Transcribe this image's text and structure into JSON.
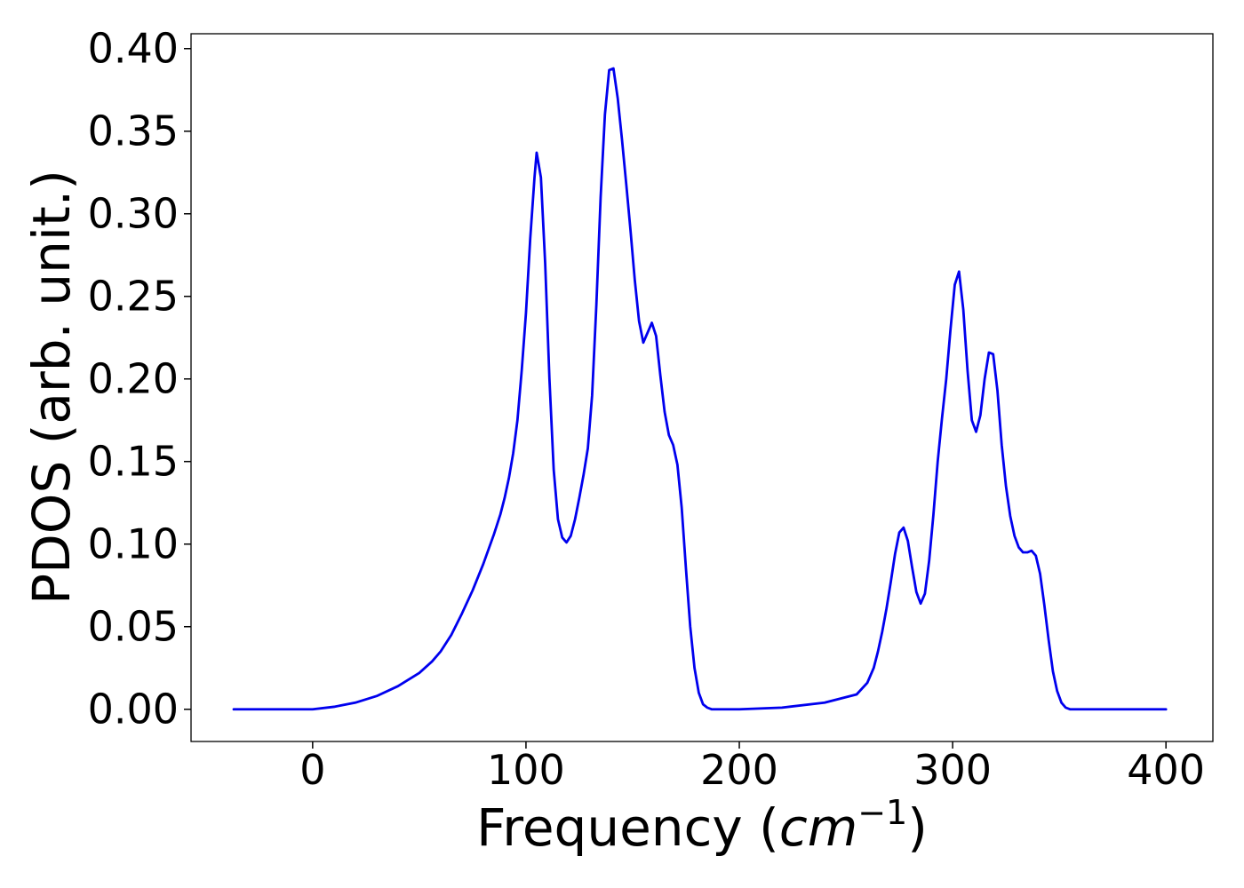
{
  "chart_data": {
    "type": "line",
    "xlabel_main": "Frequency (",
    "xlabel_math_base": "cm",
    "xlabel_math_sup": "−1",
    "xlabel_close": ")",
    "ylabel": "PDOS (arb. unit.)",
    "xlim": [
      -57,
      422
    ],
    "ylim": [
      -0.0195,
      0.409
    ],
    "xticks": [
      0,
      100,
      200,
      300,
      400
    ],
    "xtick_labels": [
      "0",
      "100",
      "200",
      "300",
      "400"
    ],
    "yticks": [
      0.0,
      0.05,
      0.1,
      0.15,
      0.2,
      0.25,
      0.3,
      0.35,
      0.4
    ],
    "ytick_labels": [
      "0.00",
      "0.05",
      "0.10",
      "0.15",
      "0.20",
      "0.25",
      "0.30",
      "0.35",
      "0.40"
    ],
    "grid": false,
    "series": [
      {
        "color": "#0000ee",
        "x": [
          -37,
          0,
          10,
          20,
          30,
          40,
          50,
          56,
          60,
          65,
          70,
          75,
          80,
          85,
          88,
          90,
          92,
          94,
          96,
          98,
          100,
          102,
          104,
          105,
          107,
          109,
          111,
          113,
          115,
          117,
          119,
          121,
          123,
          125,
          127,
          129,
          131,
          133,
          135,
          137,
          139,
          141,
          143,
          145,
          147,
          149,
          151,
          153,
          155,
          157,
          159,
          161,
          163,
          165,
          167,
          169,
          171,
          173,
          175,
          177,
          179,
          181,
          183,
          185,
          187,
          189,
          191,
          193,
          195,
          200,
          220,
          240,
          255,
          260,
          263,
          265,
          267,
          269,
          271,
          273,
          275,
          277,
          279,
          281,
          283,
          285,
          287,
          289,
          291,
          293,
          295,
          297,
          299,
          301,
          303,
          305,
          307,
          309,
          311,
          313,
          315,
          317,
          319,
          321,
          323,
          325,
          327,
          329,
          331,
          333,
          335,
          337,
          339,
          341,
          343,
          345,
          347,
          349,
          351,
          353,
          355,
          357,
          359,
          361,
          363,
          365,
          367,
          369,
          371,
          373,
          380,
          400
        ],
        "y": [
          0.0,
          0.0,
          0.0015,
          0.004,
          0.008,
          0.014,
          0.022,
          0.029,
          0.035,
          0.045,
          0.058,
          0.072,
          0.088,
          0.106,
          0.118,
          0.128,
          0.14,
          0.155,
          0.175,
          0.205,
          0.24,
          0.285,
          0.322,
          0.337,
          0.322,
          0.27,
          0.2,
          0.145,
          0.115,
          0.104,
          0.101,
          0.105,
          0.115,
          0.128,
          0.142,
          0.158,
          0.19,
          0.245,
          0.31,
          0.36,
          0.387,
          0.388,
          0.37,
          0.345,
          0.318,
          0.29,
          0.26,
          0.235,
          0.222,
          0.228,
          0.234,
          0.226,
          0.202,
          0.18,
          0.166,
          0.16,
          0.148,
          0.122,
          0.085,
          0.05,
          0.025,
          0.01,
          0.003,
          0.001,
          0.0,
          0.0,
          0.0,
          0.0,
          0.0,
          0.0,
          0.001,
          0.004,
          0.009,
          0.016,
          0.025,
          0.035,
          0.047,
          0.061,
          0.077,
          0.094,
          0.107,
          0.11,
          0.102,
          0.086,
          0.071,
          0.064,
          0.07,
          0.09,
          0.118,
          0.15,
          0.176,
          0.2,
          0.23,
          0.257,
          0.265,
          0.242,
          0.205,
          0.175,
          0.168,
          0.178,
          0.2,
          0.216,
          0.215,
          0.193,
          0.16,
          0.135,
          0.117,
          0.105,
          0.098,
          0.095,
          0.095,
          0.096,
          0.093,
          0.082,
          0.063,
          0.042,
          0.023,
          0.011,
          0.004,
          0.001,
          0.0,
          0.0,
          0.0,
          0.0,
          0.0,
          0.0,
          0.0,
          0.0,
          0.0,
          0.0,
          0.0,
          0.0
        ]
      }
    ]
  }
}
